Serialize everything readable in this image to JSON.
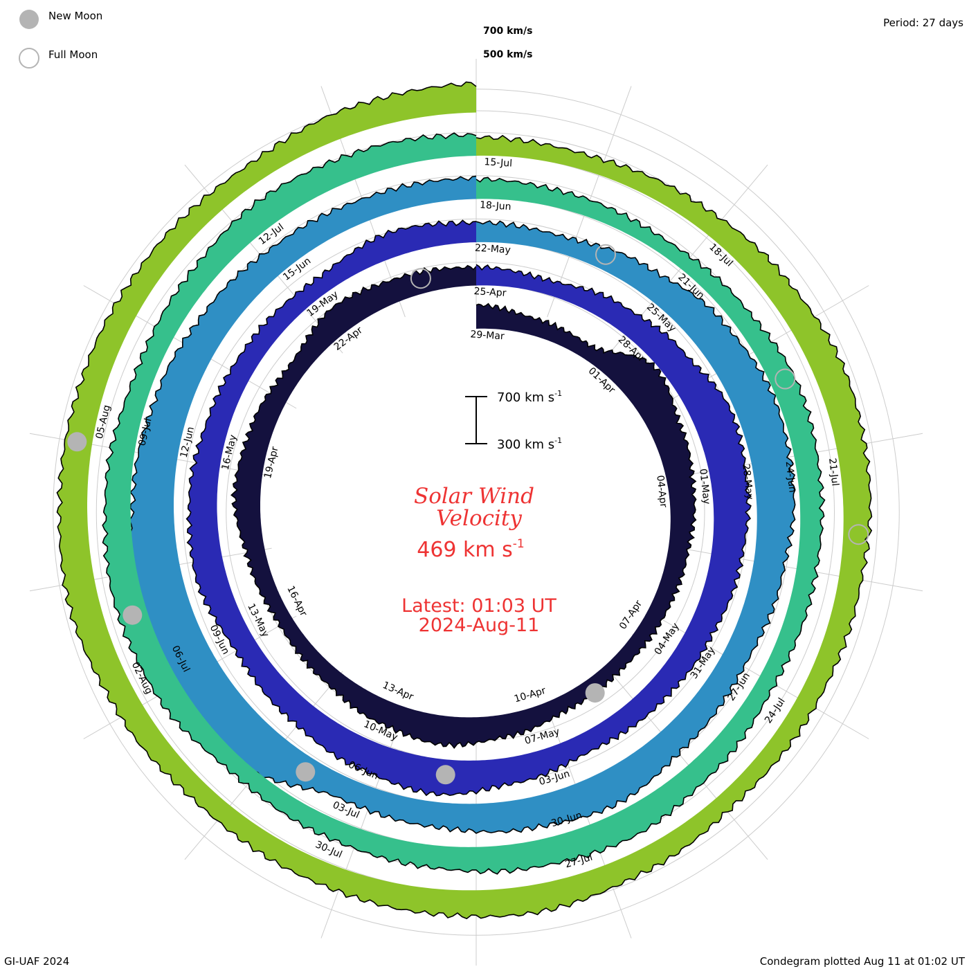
{
  "legend": {
    "new_moon_label": "New Moon",
    "full_moon_label": "Full Moon",
    "new_moon_color": "#b4b4b4",
    "full_moon_color": "#b4b4b4"
  },
  "period_label": "Period: 27 days",
  "footer_left": "GI-UAF 2024",
  "footer_right": "Condegram plotted Aug 11 at 01:02 UT",
  "center": {
    "title_line1": "Solar Wind",
    "title_line2": "Velocity",
    "value_text": "469 km s",
    "value_exp": "-1",
    "latest_line1": "Latest: 01:03 UT",
    "latest_line2": "2024-Aug-11",
    "color": "#ee3333"
  },
  "scale_bar": {
    "top_label": "700 km s",
    "bottom_label": "300 km s",
    "exp": "-1"
  },
  "chart_data": {
    "type": "area",
    "title": "Solar Wind Velocity",
    "units": "km/s",
    "period_days": 27,
    "reference_levels": [
      {
        "label": "700 km/s",
        "value": 700
      },
      {
        "label": "500 km/s",
        "value": 500
      }
    ],
    "rotations": [
      {
        "color": "#14113e",
        "labels": [
          "29-Mar",
          "01-Apr",
          "04-Apr",
          "07-Apr",
          "10-Apr",
          "13-Apr",
          "16-Apr",
          "19-Apr",
          "22-Apr"
        ],
        "values": [
          430,
          380,
          360,
          560,
          480,
          440,
          400,
          380,
          360,
          370,
          420,
          470,
          430,
          380,
          360,
          390,
          450,
          420,
          380,
          460,
          420,
          390
        ]
      },
      {
        "color": "#2a2ab4",
        "labels": [
          "25-Apr",
          "28-Apr",
          "01-May",
          "04-May",
          "07-May",
          "10-May",
          "13-May",
          "16-May",
          "19-May"
        ],
        "values": [
          390,
          360,
          420,
          470,
          550,
          520,
          480,
          440,
          420,
          400,
          450,
          520,
          480,
          440,
          420,
          480,
          460,
          420,
          400,
          380,
          440,
          400
        ]
      },
      {
        "color": "#2f8fc4",
        "labels": [
          "22-May",
          "25-May",
          "28-May",
          "31-May",
          "03-Jun",
          "06-Jun",
          "09-Jun",
          "12-Jun",
          "15-Jun"
        ],
        "values": [
          400,
          380,
          440,
          520,
          560,
          540,
          480,
          440,
          460,
          520,
          480,
          440,
          420,
          600,
          640,
          620,
          560,
          520,
          480,
          440,
          420,
          410
        ]
      },
      {
        "color": "#36c08c",
        "labels": [
          "18-Jun",
          "21-Jun",
          "24-Jun",
          "27-Jun",
          "30-Jun",
          "03-Jul",
          "06-Jul",
          "09-Jul",
          "12-Jul"
        ],
        "values": [
          400,
          380,
          360,
          390,
          440,
          420,
          400,
          380,
          420,
          470,
          450,
          420,
          400,
          380,
          450,
          470,
          440,
          400,
          420,
          460,
          440,
          410
        ]
      },
      {
        "color": "#8ec42a",
        "labels": [
          "15-Jul",
          "18-Jul",
          "21-Jul",
          "24-Jul",
          "27-Jul",
          "30-Jul",
          "02-Aug",
          "05-Aug"
        ],
        "values": [
          390,
          370,
          400,
          440,
          480,
          460,
          420,
          400,
          380,
          420,
          460,
          440,
          420,
          400,
          440,
          480,
          460,
          440,
          420,
          400,
          450,
          469
        ]
      }
    ],
    "moon_phases": [
      {
        "type": "New Moon",
        "date": "08-Apr"
      },
      {
        "type": "Full Moon",
        "date": "23-Apr"
      },
      {
        "type": "New Moon",
        "date": "08-May"
      },
      {
        "type": "Full Moon",
        "date": "23-May"
      },
      {
        "type": "New Moon",
        "date": "06-Jun"
      },
      {
        "type": "Full Moon",
        "date": "22-Jun"
      },
      {
        "type": "New Moon",
        "date": "06-Jul"
      },
      {
        "type": "Full Moon",
        "date": "21-Jul"
      },
      {
        "type": "New Moon",
        "date": "04-Aug"
      }
    ]
  }
}
